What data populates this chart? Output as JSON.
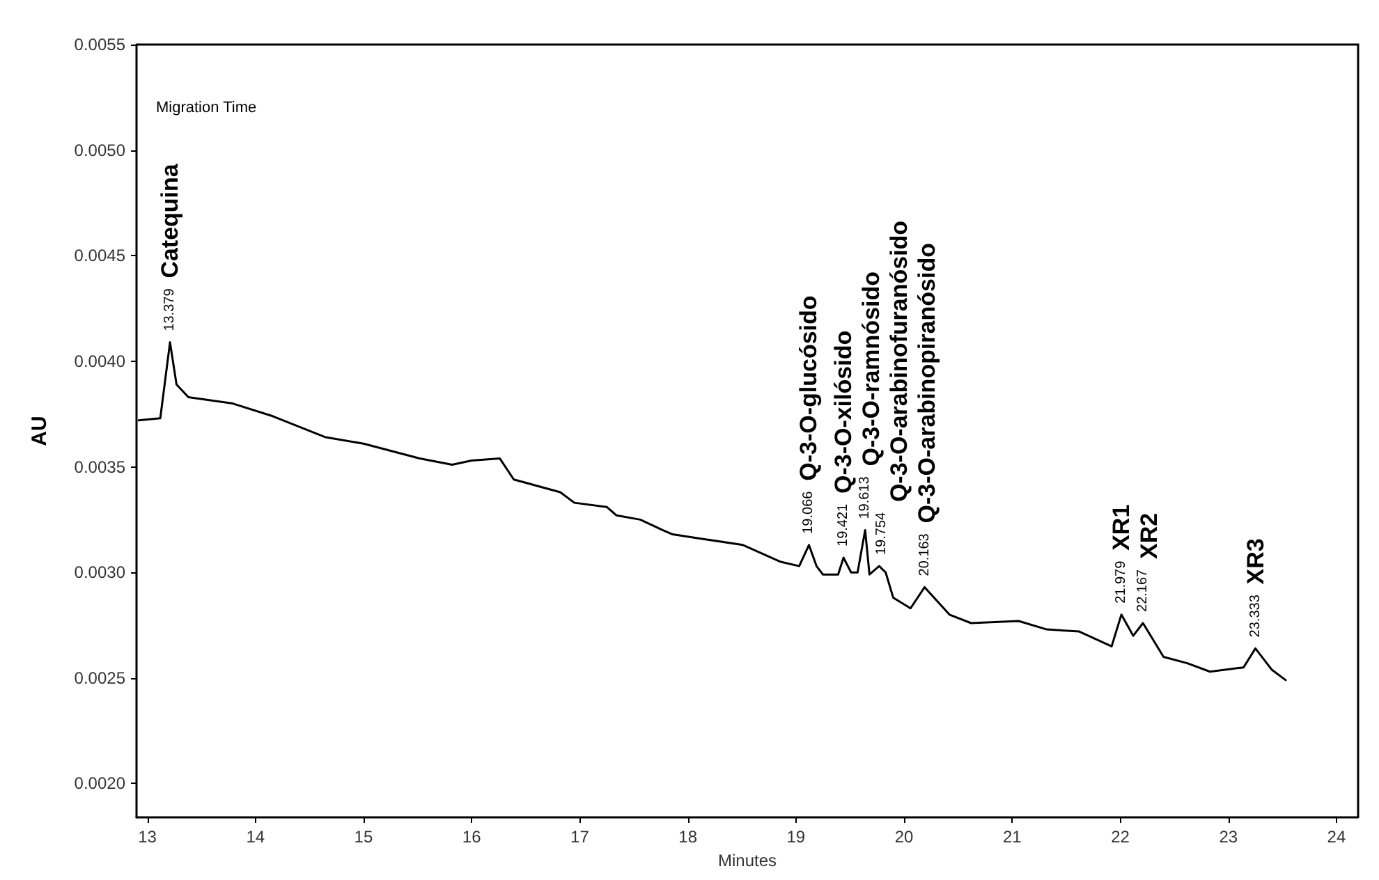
{
  "chart_data": {
    "type": "line",
    "xlabel": "Minutes",
    "ylabel": "AU",
    "xlim": [
      12.9,
      24.2
    ],
    "ylim": [
      0.00184,
      0.0055
    ],
    "xticks": [
      13,
      14,
      15,
      16,
      17,
      18,
      19,
      20,
      21,
      22,
      23,
      24
    ],
    "yticks": [
      {
        "value": 0.002,
        "label": "0.0020"
      },
      {
        "value": 0.0025,
        "label": "0.0025"
      },
      {
        "value": 0.003,
        "label": "0.0030"
      },
      {
        "value": 0.0035,
        "label": "0.0035"
      },
      {
        "value": 0.004,
        "label": "0.0040"
      },
      {
        "value": 0.0045,
        "label": "0.0045"
      },
      {
        "value": 0.005,
        "label": "0.0050"
      },
      {
        "value": 0.0055,
        "label": "0.0055"
      }
    ],
    "grid": false,
    "marker": "none",
    "line_style": "solid",
    "series": [
      {
        "color": "#000000",
        "x": [
          12.92,
          13.12,
          13.21,
          13.27,
          13.38,
          13.79,
          14.16,
          14.65,
          15.0,
          15.52,
          15.82,
          16.0,
          16.26,
          16.39,
          16.82,
          16.95,
          17.25,
          17.34,
          17.56,
          17.77,
          17.86,
          18.12,
          18.51,
          18.86,
          19.03,
          19.12,
          19.19,
          19.25,
          19.39,
          19.44,
          19.51,
          19.57,
          19.64,
          19.68,
          19.77,
          19.83,
          19.9,
          20.06,
          20.19,
          20.42,
          20.62,
          21.06,
          21.32,
          21.62,
          21.92,
          22.01,
          22.12,
          22.21,
          22.4,
          22.62,
          22.83,
          23.14,
          23.25,
          23.4,
          23.53
        ],
        "values": [
          0.00372,
          0.00373,
          0.00409,
          0.00389,
          0.00383,
          0.0038,
          0.00374,
          0.00364,
          0.00361,
          0.00354,
          0.00351,
          0.00353,
          0.00354,
          0.00344,
          0.00338,
          0.00333,
          0.00331,
          0.00327,
          0.00325,
          0.0032,
          0.00318,
          0.00316,
          0.00313,
          0.00305,
          0.00303,
          0.00313,
          0.00303,
          0.00299,
          0.00299,
          0.00307,
          0.003,
          0.003,
          0.0032,
          0.00299,
          0.00303,
          0.003,
          0.00288,
          0.00283,
          0.00293,
          0.0028,
          0.00276,
          0.00277,
          0.00273,
          0.00272,
          0.00265,
          0.0028,
          0.0027,
          0.00276,
          0.0026,
          0.00257,
          0.00253,
          0.00255,
          0.00264,
          0.00254,
          0.00249
        ]
      }
    ],
    "annotations": [
      "Migration Time",
      {
        "text": "13.379",
        "x": 13.21,
        "y": 0.00409
      },
      {
        "text": "Catequina",
        "x": 13.21,
        "y": 0.00409
      },
      {
        "text": "19.066",
        "x": 19.12,
        "y": 0.00313
      },
      {
        "text": "Q-3-O-glucósido",
        "x": 19.12,
        "y": 0.00313
      },
      {
        "text": "19.421",
        "x": 19.44,
        "y": 0.00307
      },
      {
        "text": "Q-3-O-xilósido",
        "x": 19.44,
        "y": 0.00307
      },
      {
        "text": "19.613",
        "x": 19.64,
        "y": 0.0032
      },
      {
        "text": "Q-3-O-ramnósido",
        "x": 19.64,
        "y": 0.0032
      },
      {
        "text": "19.754",
        "x": 19.77,
        "y": 0.00303
      },
      {
        "text": "Q-3-O-arabinofuranósido",
        "x": 19.77,
        "y": 0.00303
      },
      {
        "text": "20.163",
        "x": 20.19,
        "y": 0.00293
      },
      {
        "text": "Q-3-O-arabinopiranósido",
        "x": 20.19,
        "y": 0.00293
      },
      {
        "text": "21.979",
        "x": 22.01,
        "y": 0.0028
      },
      {
        "text": "XR1",
        "x": 22.01,
        "y": 0.0028
      },
      {
        "text": "22.167",
        "x": 22.21,
        "y": 0.00276
      },
      {
        "text": "XR2",
        "x": 22.21,
        "y": 0.00276
      },
      {
        "text": "23.333",
        "x": 23.25,
        "y": 0.00264
      },
      {
        "text": "XR3",
        "x": 23.25,
        "y": 0.00264
      }
    ]
  }
}
